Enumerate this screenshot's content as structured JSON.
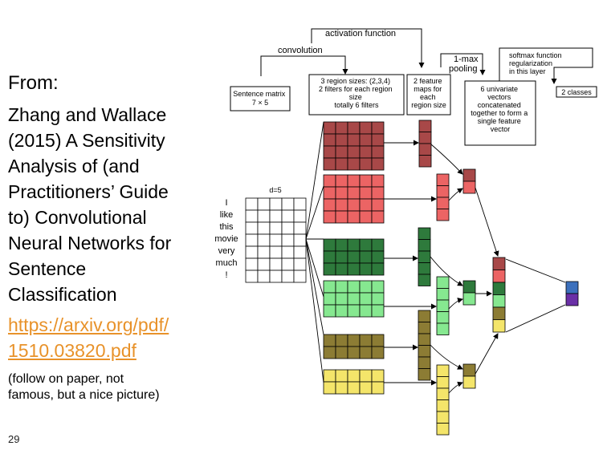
{
  "slide": {
    "from_label": "From:",
    "citation_lines": [
      "Zhang and Wallace",
      "(2015) A Sensitivity",
      "Analysis of (and",
      "Practitioners’ Guide",
      "to) Convolutional",
      "Neural Networks for",
      "Sentence",
      "Classification"
    ],
    "link_lines": [
      "https://arxiv.org/pdf/",
      "1510.03820.pdf"
    ],
    "note_lines": [
      "(follow on paper, not",
      "famous, but a nice picture)"
    ],
    "page_number": "29"
  },
  "diagram": {
    "activation_label": "activation function",
    "convolution_label": "convolution",
    "max_pooling_label": [
      "1-max",
      "pooling"
    ],
    "softmax_label": [
      "softmax function",
      "regularization",
      "in this layer"
    ],
    "sentence_matrix_label": [
      "Sentence matrix",
      "7 × 5"
    ],
    "region_sizes_label": [
      "3 region sizes: (2,3,4)",
      "2 filters for each region",
      "size",
      "totally 6 filters"
    ],
    "feature_maps_label": [
      "2 feature",
      "maps for",
      "each",
      "region size"
    ],
    "univariate_label": [
      "6 univariate",
      "vectors",
      "concatenated",
      "together to form a",
      "single feature",
      "vector"
    ],
    "classes_label": "2 classes",
    "dimension_label": "d=5",
    "sentence_words": [
      "I",
      "like",
      "this",
      "movie",
      "very",
      "much",
      "!"
    ],
    "colors": {
      "dark_red": "#A84848",
      "light_red": "#EC6464",
      "dark_green": "#2E7A3C",
      "light_green": "#86E890",
      "olive": "#8C7C34",
      "yellow": "#F4E56A",
      "blue": "#3C70BC",
      "purple": "#6A2FA6"
    }
  }
}
